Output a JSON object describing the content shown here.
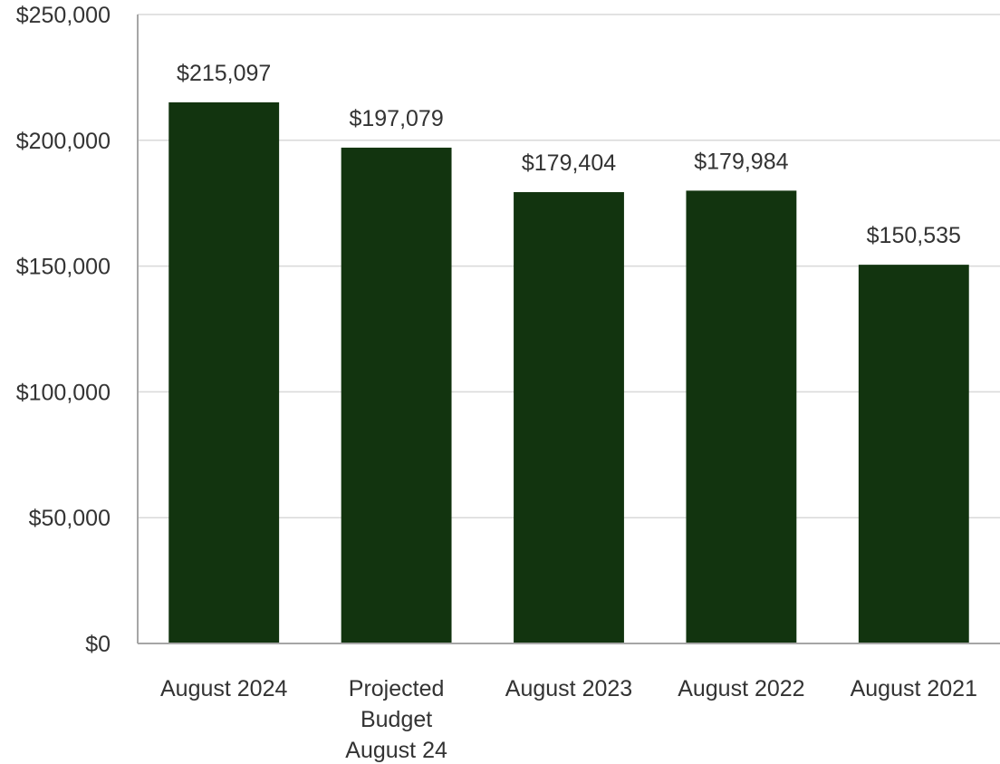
{
  "chart_data": {
    "type": "bar",
    "title": "",
    "xlabel": "",
    "ylabel": "",
    "categories": [
      [
        "August 2024"
      ],
      [
        "Projected",
        "Budget",
        "August 24"
      ],
      [
        "August 2023"
      ],
      [
        "August 2022"
      ],
      [
        "August 2021"
      ]
    ],
    "values": [
      215097,
      197079,
      179404,
      179984,
      150535
    ],
    "data_labels": [
      "$215,097",
      "$197,079",
      "$179,404",
      "$179,984",
      "$150,535"
    ],
    "ylim": [
      0,
      250000
    ],
    "yticks": [
      0,
      50000,
      100000,
      150000,
      200000,
      250000
    ],
    "ytick_labels": [
      "$0",
      "$50,000",
      "$100,000",
      "$150,000",
      "$200,000",
      "$250,000"
    ],
    "grid": true,
    "legend": "none",
    "colors": {
      "bar": "#12340f"
    }
  }
}
